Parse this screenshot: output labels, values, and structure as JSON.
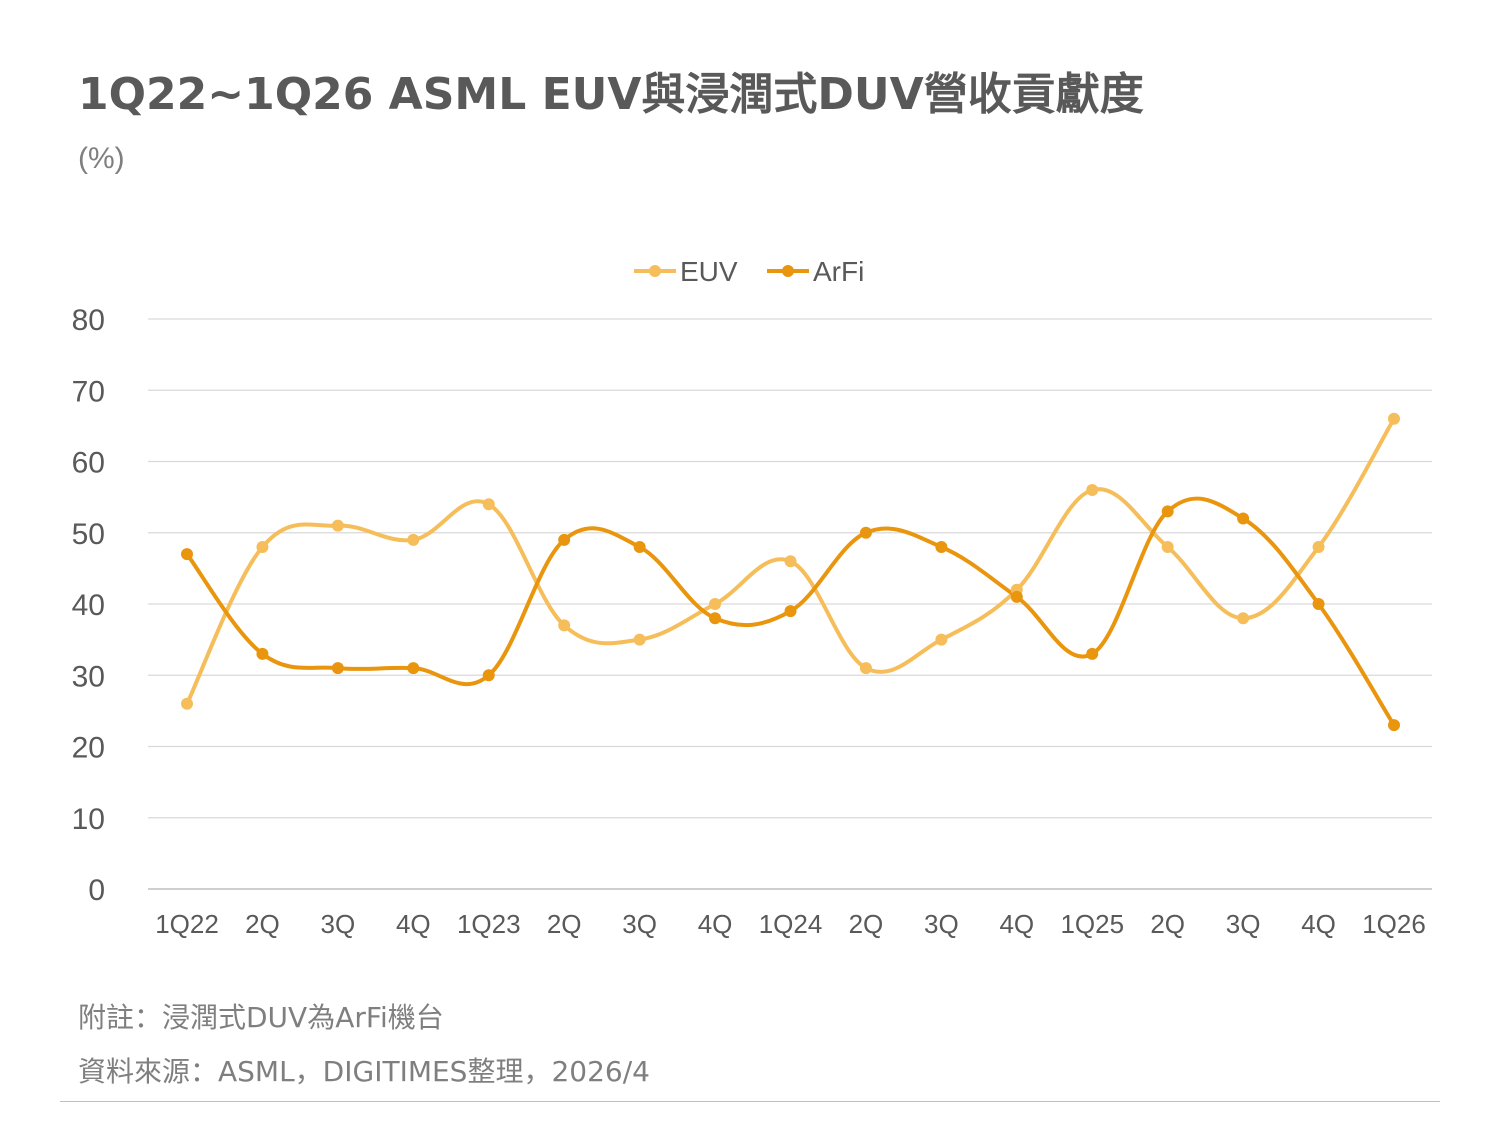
{
  "title": "1Q22~1Q26 ASML EUV與浸潤式DUV營收貢獻度",
  "unit": "(%)",
  "notes": {
    "note": "附註：浸潤式DUV為ArFi機台",
    "source": "資料來源：ASML，DIGITIMES整理，2026/4"
  },
  "chart_data": {
    "type": "line",
    "categories": [
      "1Q22",
      "2Q",
      "3Q",
      "4Q",
      "1Q23",
      "2Q",
      "3Q",
      "4Q",
      "1Q24",
      "2Q",
      "3Q",
      "4Q",
      "1Q25",
      "2Q",
      "3Q",
      "4Q",
      "1Q26"
    ],
    "ylim": [
      0,
      80
    ],
    "yticks": [
      "0",
      "10",
      "20",
      "30",
      "40",
      "50",
      "60",
      "70",
      "80"
    ],
    "grid": true,
    "legend": "top-center",
    "smooth": true,
    "series": [
      {
        "name": "EUV",
        "color": "#F6BE5A",
        "values": [
          26,
          48,
          51,
          49,
          54,
          37,
          35,
          40,
          46,
          31,
          35,
          42,
          56,
          48,
          38,
          48,
          66
        ]
      },
      {
        "name": "ArFi",
        "color": "#E9960E",
        "values": [
          47,
          33,
          31,
          31,
          30,
          49,
          48,
          38,
          39,
          50,
          48,
          41,
          33,
          53,
          52,
          40,
          23
        ]
      }
    ]
  }
}
